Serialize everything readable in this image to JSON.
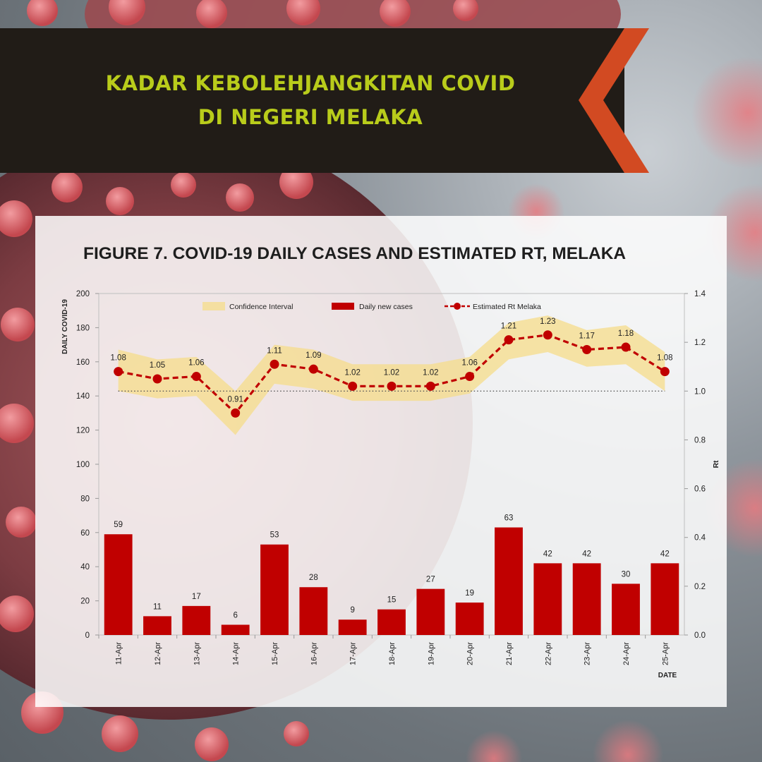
{
  "banner": {
    "line1": "KADAR KEBOLEHJANGKITAN COVID",
    "line2": "DI NEGERI MELAKA"
  },
  "colors": {
    "banner_bg": "#211c17",
    "banner_text": "#b9cc1b",
    "chevron": "#d24a22",
    "bar": "#c00000",
    "rt_line": "#c00000",
    "ci_band": "#f5dc8a"
  },
  "chart_data": {
    "type": "bar",
    "title": "FIGURE 7. COVID-19 DAILY CASES AND ESTIMATED RT, MELAKA",
    "xlabel": "DATE",
    "ylabel": "DAILY COVID-19",
    "y2label": "Rt",
    "ylim": [
      0,
      200
    ],
    "y2lim": [
      0.0,
      1.4
    ],
    "yticks": [
      "0",
      "20",
      "40",
      "60",
      "80",
      "100",
      "120",
      "140",
      "160",
      "180",
      "200"
    ],
    "y2ticks": [
      "0.0",
      "0.2",
      "0.4",
      "0.6",
      "0.8",
      "1.0",
      "1.2",
      "1.4"
    ],
    "reference_line_rt": 1.0,
    "legend_position": "top",
    "categories": [
      "11-Apr",
      "12-Apr",
      "13-Apr",
      "14-Apr",
      "15-Apr",
      "16-Apr",
      "17-Apr",
      "18-Apr",
      "19-Apr",
      "20-Apr",
      "21-Apr",
      "22-Apr",
      "23-Apr",
      "24-Apr",
      "25-Apr"
    ],
    "series": [
      {
        "name": "Daily new cases",
        "type": "bar",
        "axis": "left",
        "values": [
          59,
          11,
          17,
          6,
          53,
          28,
          9,
          15,
          27,
          19,
          63,
          42,
          42,
          30,
          42
        ],
        "labels": [
          "59",
          "11",
          "17",
          "6",
          "53",
          "28",
          "9",
          "15",
          "27",
          "19",
          "63",
          "42",
          "42",
          "30",
          "42"
        ]
      },
      {
        "name": "Estimated Rt Melaka",
        "type": "line",
        "axis": "right",
        "values": [
          1.08,
          1.05,
          1.06,
          0.91,
          1.11,
          1.09,
          1.02,
          1.02,
          1.02,
          1.06,
          1.21,
          1.23,
          1.17,
          1.18,
          1.08
        ],
        "labels": [
          "1.08",
          "1.05",
          "1.06",
          "0.91",
          "1.11",
          "1.09",
          "1.02",
          "1.02",
          "1.02",
          "1.06",
          "1.21",
          "1.23",
          "1.17",
          "1.18",
          "1.08"
        ]
      },
      {
        "name": "Confidence Interval",
        "type": "band",
        "axis": "right",
        "lower": [
          1.0,
          0.97,
          0.98,
          0.82,
          1.03,
          1.01,
          0.96,
          0.96,
          0.96,
          0.99,
          1.13,
          1.16,
          1.1,
          1.11,
          1.0
        ],
        "upper": [
          1.17,
          1.13,
          1.14,
          1.0,
          1.19,
          1.17,
          1.11,
          1.11,
          1.11,
          1.14,
          1.28,
          1.31,
          1.25,
          1.27,
          1.16
        ]
      }
    ]
  }
}
